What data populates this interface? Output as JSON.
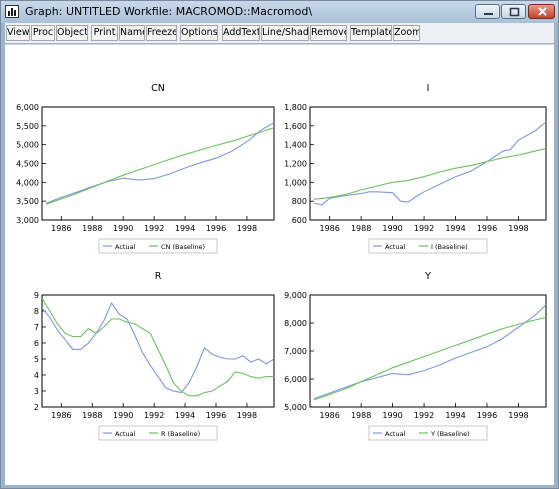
{
  "window": {
    "title": "Graph: UNTITLED   Workfile: MACROMOD::Macromod\\",
    "icon": "chart-icon",
    "controls": [
      "minimize-icon",
      "maximize-icon",
      "close-icon"
    ]
  },
  "toolbar": {
    "buttons": [
      "View",
      "Proc",
      "Object",
      "Print",
      "Name",
      "Freeze",
      "Options",
      "AddText",
      "Line/Shade",
      "Remove",
      "Template",
      "Zoom"
    ]
  },
  "colors": {
    "actual": "#7f98db",
    "baseline": "#6fbf63",
    "titlebar": "#b8cbe0"
  },
  "chart_data": [
    {
      "type": "line",
      "title": "CN",
      "xlim": [
        1984.75,
        1999.75
      ],
      "xticks": [
        1986,
        1988,
        1990,
        1992,
        1994,
        1996,
        1998
      ],
      "ylim": [
        3000,
        6000
      ],
      "yticks": [
        "3,000",
        "3,500",
        "4,000",
        "4,500",
        "5,000",
        "5,500",
        "6,000"
      ],
      "legend": "bottom",
      "series": [
        {
          "name": "Actual",
          "x": [
            1985,
            1986,
            1987,
            1988,
            1989,
            1990,
            1991,
            1992,
            1993,
            1994,
            1995,
            1996,
            1997,
            1998,
            1999,
            1999.75
          ],
          "values": [
            3440,
            3600,
            3740,
            3890,
            4020,
            4110,
            4060,
            4100,
            4220,
            4380,
            4520,
            4640,
            4820,
            5080,
            5410,
            5580
          ]
        },
        {
          "name": "CN (Baseline)",
          "x": [
            1985,
            1986,
            1987,
            1988,
            1989,
            1990,
            1991,
            1992,
            1993,
            1994,
            1995,
            1996,
            1997,
            1998,
            1999,
            1999.75
          ],
          "values": [
            3420,
            3560,
            3710,
            3870,
            4030,
            4190,
            4330,
            4470,
            4610,
            4740,
            4860,
            4980,
            5090,
            5220,
            5350,
            5450
          ]
        }
      ]
    },
    {
      "type": "line",
      "title": "I",
      "xlim": [
        1984.75,
        1999.75
      ],
      "xticks": [
        1986,
        1988,
        1990,
        1992,
        1994,
        1996,
        1998
      ],
      "ylim": [
        600,
        1800
      ],
      "yticks": [
        "600",
        "800",
        "1,000",
        "1,200",
        "1,400",
        "1,600",
        "1,800"
      ],
      "legend": "bottom",
      "series": [
        {
          "name": "Actual",
          "x": [
            1985,
            1985.5,
            1986,
            1987,
            1988,
            1988.5,
            1989,
            1990,
            1990.5,
            1991,
            1991.5,
            1992,
            1993,
            1994,
            1995,
            1996,
            1997,
            1997.5,
            1998,
            1999,
            1999.75
          ],
          "values": [
            780,
            760,
            830,
            860,
            880,
            900,
            900,
            890,
            800,
            790,
            850,
            900,
            980,
            1060,
            1120,
            1220,
            1330,
            1350,
            1450,
            1540,
            1640
          ]
        },
        {
          "name": "I (Baseline)",
          "x": [
            1985,
            1986,
            1987,
            1988,
            1989,
            1990,
            1991,
            1992,
            1993,
            1994,
            1995,
            1996,
            1997,
            1998,
            1999,
            1999.75
          ],
          "values": [
            820,
            840,
            870,
            920,
            960,
            1000,
            1020,
            1060,
            1110,
            1150,
            1180,
            1220,
            1260,
            1290,
            1330,
            1360
          ]
        }
      ]
    },
    {
      "type": "line",
      "title": "R",
      "xlim": [
        1984.75,
        1999.75
      ],
      "xticks": [
        1986,
        1988,
        1990,
        1992,
        1994,
        1996,
        1998
      ],
      "ylim": [
        2,
        9
      ],
      "yticks": [
        "2",
        "3",
        "4",
        "5",
        "6",
        "7",
        "8",
        "9"
      ],
      "legend": "bottom",
      "series": [
        {
          "name": "Actual",
          "x": [
            1984.75,
            1985.25,
            1985.75,
            1986.25,
            1986.75,
            1987.25,
            1987.75,
            1988.25,
            1988.75,
            1989.25,
            1989.75,
            1990.25,
            1990.75,
            1991.25,
            1991.75,
            1992.25,
            1992.75,
            1993.25,
            1993.75,
            1994.25,
            1994.75,
            1995.25,
            1995.75,
            1996.25,
            1996.75,
            1997.25,
            1997.75,
            1998.25,
            1998.75,
            1999.25,
            1999.75
          ],
          "values": [
            8.2,
            7.6,
            6.8,
            6.2,
            5.6,
            5.6,
            6.0,
            6.6,
            7.4,
            8.5,
            7.8,
            7.5,
            6.5,
            5.4,
            4.6,
            3.9,
            3.2,
            3.0,
            2.9,
            3.5,
            4.5,
            5.7,
            5.3,
            5.1,
            5.0,
            5.0,
            5.2,
            4.8,
            5.0,
            4.7,
            5.0
          ]
        },
        {
          "name": "R (Baseline)",
          "x": [
            1984.75,
            1985.25,
            1985.75,
            1986.25,
            1986.75,
            1987.25,
            1987.75,
            1988.25,
            1988.75,
            1989.25,
            1989.75,
            1990.25,
            1990.75,
            1991.25,
            1991.75,
            1992.25,
            1992.75,
            1993.25,
            1993.75,
            1994.25,
            1994.75,
            1995.25,
            1995.75,
            1996.25,
            1996.75,
            1997.25,
            1997.75,
            1998.25,
            1998.75,
            1999.25,
            1999.75
          ],
          "values": [
            8.8,
            8.0,
            7.2,
            6.6,
            6.4,
            6.4,
            6.9,
            6.6,
            7.0,
            7.5,
            7.5,
            7.3,
            7.2,
            6.9,
            6.6,
            5.6,
            4.6,
            3.5,
            3.0,
            2.7,
            2.7,
            2.9,
            3.0,
            3.3,
            3.6,
            4.2,
            4.1,
            3.9,
            3.8,
            3.9,
            3.9
          ]
        }
      ]
    },
    {
      "type": "line",
      "title": "Y",
      "xlim": [
        1984.75,
        1999.75
      ],
      "xticks": [
        1986,
        1988,
        1990,
        1992,
        1994,
        1996,
        1998
      ],
      "ylim": [
        5000,
        9000
      ],
      "yticks": [
        "5,000",
        "6,000",
        "7,000",
        "8,000",
        "9,000"
      ],
      "legend": "bottom",
      "series": [
        {
          "name": "Actual",
          "x": [
            1985,
            1986,
            1987,
            1988,
            1989,
            1990,
            1991,
            1992,
            1993,
            1994,
            1995,
            1996,
            1997,
            1998,
            1999,
            1999.75
          ],
          "values": [
            5300,
            5500,
            5700,
            5900,
            6050,
            6200,
            6150,
            6300,
            6500,
            6750,
            6950,
            7150,
            7450,
            7850,
            8250,
            8650
          ]
        },
        {
          "name": "Y (Baseline)",
          "x": [
            1985,
            1986,
            1987,
            1988,
            1989,
            1990,
            1991,
            1992,
            1993,
            1994,
            1995,
            1996,
            1997,
            1998,
            1999,
            1999.75
          ],
          "values": [
            5250,
            5450,
            5650,
            5900,
            6150,
            6400,
            6600,
            6800,
            7000,
            7200,
            7400,
            7600,
            7800,
            7950,
            8100,
            8200
          ]
        }
      ]
    }
  ]
}
